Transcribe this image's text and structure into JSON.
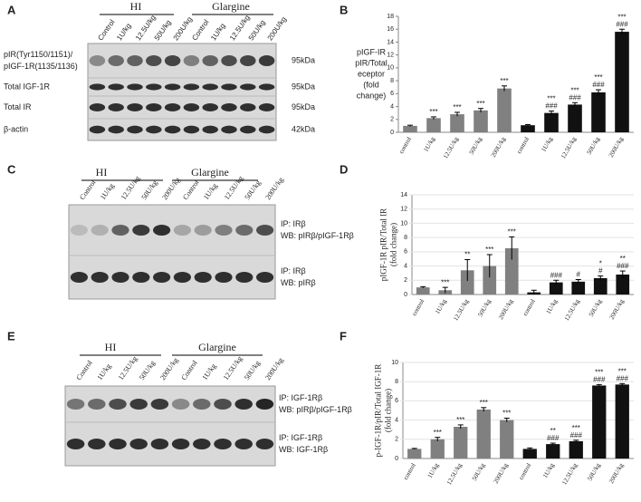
{
  "panel_labels": [
    "A",
    "B",
    "C",
    "D",
    "E",
    "F"
  ],
  "blots": [
    {
      "groups": [
        "HI",
        "Glargine"
      ],
      "lanes": [
        "Control",
        "1U/kg",
        "12.5U/kg",
        "50U/kg",
        "200U/kg",
        "Control",
        "1U/kg",
        "12.5U/kg",
        "50U/kg",
        "200U/kg"
      ],
      "rows": [
        {
          "label": [
            "pIR(Tyr1150/1151)/",
            "pIGF-1R(1135/1136)"
          ],
          "size": "95kDa"
        },
        {
          "label": [
            "Total IGF-1R"
          ],
          "size": "95kDa"
        },
        {
          "label": [
            "Total IR"
          ],
          "size": "95kDa"
        },
        {
          "label": [
            "β-actin"
          ],
          "size": "42kDa"
        }
      ]
    },
    {
      "groups": [
        "HI",
        "Glargine"
      ],
      "lanes": [
        "Control",
        "1U/kg",
        "12.5U/kg",
        "50U/kg",
        "200U/kg",
        "Control",
        "1U/kg",
        "12.5U/kg",
        "50U/kg",
        "200U/kg"
      ],
      "rows": [
        {
          "label": [
            "IP:  IRβ",
            "WB:  pIRβ/pIGF-1Rβ"
          ]
        },
        {
          "label": [
            "IP:  IRβ",
            "WB:  pIRβ"
          ]
        }
      ]
    },
    {
      "groups": [
        "HI",
        "Glargine"
      ],
      "lanes": [
        "Control",
        "1U/kg",
        "12.5U/kg",
        "50U/kg",
        "200U/kg",
        "Control",
        "1U/kg",
        "12.5U/kg",
        "50U/kg",
        "200U/kg"
      ],
      "rows": [
        {
          "label": [
            "IP:  IGF-1Rβ",
            "WB:  pIRβ/pIGF-1Rβ"
          ]
        },
        {
          "label": [
            "IP:  IGF-1Rβ",
            "WB:  IGF-1Rβ"
          ]
        }
      ]
    }
  ],
  "chart_data": [
    {
      "type": "bar",
      "ylabel": [
        "pIGF-IR",
        "pIR/Total",
        "eceptor",
        "(fold",
        "change)"
      ],
      "ylabel_rotated": false,
      "grid": false,
      "categories": [
        "control",
        "1U/kg",
        "12.5U/kg",
        "50U/kg",
        "200U/kg",
        "control",
        "1U/kg",
        "12.5U/kg",
        "50U/kg",
        "200U/kg"
      ],
      "values": [
        1.0,
        2.2,
        2.8,
        3.4,
        6.8,
        1.1,
        3.0,
        4.3,
        6.2,
        15.6
      ],
      "errors": [
        0.1,
        0.2,
        0.3,
        0.3,
        0.4,
        0.1,
        0.3,
        0.3,
        0.4,
        0.4
      ],
      "colors": [
        "#808080",
        "#808080",
        "#808080",
        "#808080",
        "#808080",
        "#111111",
        "#111111",
        "#111111",
        "#111111",
        "#111111"
      ],
      "annotations": [
        [],
        [
          "***"
        ],
        [
          "***"
        ],
        [
          "***"
        ],
        [
          "***"
        ],
        [],
        [
          "***",
          "###"
        ],
        [
          "***",
          "###"
        ],
        [
          "***",
          "###"
        ],
        [
          "***",
          "###"
        ]
      ],
      "ylim": [
        0,
        18
      ],
      "yticks": [
        0,
        2,
        4,
        6,
        8,
        10,
        12,
        14,
        16,
        18
      ]
    },
    {
      "type": "bar",
      "ylabel": [
        "pIGF-1R pIR/Total  IR",
        "(fold change)"
      ],
      "ylabel_rotated": true,
      "grid": true,
      "categories": [
        "control",
        "1U/kg",
        "12.5U/kg",
        "50U/kg",
        "200U/kg",
        "control",
        "1U/kg",
        "12.5U/kg",
        "50U/kg",
        "200U/kg"
      ],
      "values": [
        1.0,
        0.6,
        3.4,
        4.0,
        6.5,
        0.3,
        1.7,
        1.8,
        2.3,
        2.8
      ],
      "errors": [
        0.1,
        0.4,
        1.5,
        1.6,
        1.6,
        0.3,
        0.3,
        0.3,
        0.3,
        0.5
      ],
      "colors": [
        "#808080",
        "#808080",
        "#808080",
        "#808080",
        "#808080",
        "#111111",
        "#111111",
        "#111111",
        "#111111",
        "#111111"
      ],
      "annotations": [
        [],
        [
          "***"
        ],
        [
          "**"
        ],
        [
          "***"
        ],
        [
          "***"
        ],
        [],
        [
          "###"
        ],
        [
          "#"
        ],
        [
          "*",
          "#"
        ],
        [
          "**",
          "###"
        ]
      ],
      "ylim": [
        0,
        14
      ],
      "yticks": [
        0,
        2,
        4,
        6,
        8,
        10,
        12,
        14
      ]
    },
    {
      "type": "bar",
      "ylabel": [
        "p-IGF-1R/pIR/Total IGF-1R",
        "(fold change)"
      ],
      "ylabel_rotated": true,
      "grid": true,
      "categories": [
        "control",
        "1U/kg",
        "12.5U/kg",
        "50U/kg",
        "200U/kg",
        "control",
        "1U/kg",
        "12.5U/kg",
        "50U/kg",
        "200U/kg"
      ],
      "values": [
        1.0,
        2.0,
        3.3,
        5.1,
        4.0,
        1.0,
        1.5,
        1.8,
        7.6,
        7.7
      ],
      "errors": [
        0.05,
        0.2,
        0.2,
        0.2,
        0.2,
        0.1,
        0.1,
        0.1,
        0.1,
        0.1
      ],
      "colors": [
        "#808080",
        "#808080",
        "#808080",
        "#808080",
        "#808080",
        "#111111",
        "#111111",
        "#111111",
        "#111111",
        "#111111"
      ],
      "annotations": [
        [],
        [
          "***"
        ],
        [
          "***"
        ],
        [
          "***"
        ],
        [
          "***"
        ],
        [],
        [
          "**",
          "###"
        ],
        [
          "***",
          "###"
        ],
        [
          "***",
          "###"
        ],
        [
          "***",
          "###"
        ]
      ],
      "ylim": [
        0,
        10
      ],
      "yticks": [
        0,
        2,
        4,
        6,
        8,
        10
      ]
    }
  ]
}
